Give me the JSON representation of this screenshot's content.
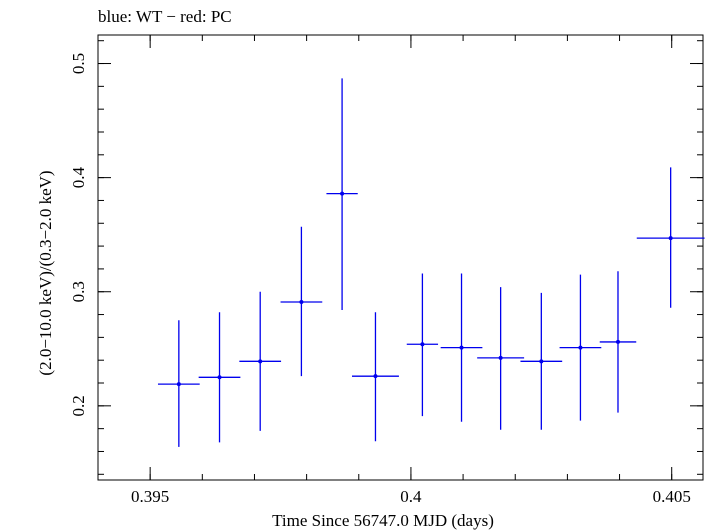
{
  "chart_data": {
    "type": "scatter",
    "title": "blue: WT − red: PC",
    "xlabel": "Time Since 56747.0 MJD (days)",
    "ylabel": "(2.0−10.0 keV)/(0.3−2.0 keV)",
    "xlim": [
      0.394,
      0.4056
    ],
    "ylim": [
      0.135,
      0.525
    ],
    "x_ticks": [
      {
        "value": 0.395,
        "label": "0.395"
      },
      {
        "value": 0.4,
        "label": "0.4"
      },
      {
        "value": 0.405,
        "label": "0.405"
      }
    ],
    "y_ticks": [
      {
        "value": 0.2,
        "label": "0.2"
      },
      {
        "value": 0.3,
        "label": "0.3"
      },
      {
        "value": 0.4,
        "label": "0.4"
      },
      {
        "value": 0.5,
        "label": "0.5"
      }
    ],
    "x_minor_step": 0.001,
    "y_minor_step": 0.02,
    "grid": false,
    "series": [
      {
        "color": "#0000ee",
        "points": [
          {
            "x": 0.39555,
            "xerr": 0.0004,
            "y": 0.219,
            "ylo": 0.164,
            "yhi": 0.275
          },
          {
            "x": 0.39633,
            "xerr": 0.0004,
            "y": 0.225,
            "ylo": 0.168,
            "yhi": 0.282
          },
          {
            "x": 0.39711,
            "xerr": 0.0004,
            "y": 0.239,
            "ylo": 0.178,
            "yhi": 0.3
          },
          {
            "x": 0.3979,
            "xerr": 0.0004,
            "y": 0.291,
            "ylo": 0.226,
            "yhi": 0.357
          },
          {
            "x": 0.39868,
            "xerr": 0.0003,
            "y": 0.386,
            "ylo": 0.284,
            "yhi": 0.487
          },
          {
            "x": 0.39932,
            "xerr": 0.00045,
            "y": 0.226,
            "ylo": 0.169,
            "yhi": 0.282
          },
          {
            "x": 0.40022,
            "xerr": 0.0003,
            "y": 0.254,
            "ylo": 0.191,
            "yhi": 0.316
          },
          {
            "x": 0.40097,
            "xerr": 0.0004,
            "y": 0.251,
            "ylo": 0.186,
            "yhi": 0.316
          },
          {
            "x": 0.40172,
            "xerr": 0.00045,
            "y": 0.242,
            "ylo": 0.179,
            "yhi": 0.304
          },
          {
            "x": 0.4025,
            "xerr": 0.0004,
            "y": 0.239,
            "ylo": 0.179,
            "yhi": 0.299
          },
          {
            "x": 0.40325,
            "xerr": 0.0004,
            "y": 0.251,
            "ylo": 0.187,
            "yhi": 0.315
          },
          {
            "x": 0.40397,
            "xerr": 0.00035,
            "y": 0.256,
            "ylo": 0.194,
            "yhi": 0.318
          },
          {
            "x": 0.40498,
            "xerr": 0.00065,
            "y": 0.347,
            "ylo": 0.286,
            "yhi": 0.409
          }
        ]
      }
    ]
  }
}
